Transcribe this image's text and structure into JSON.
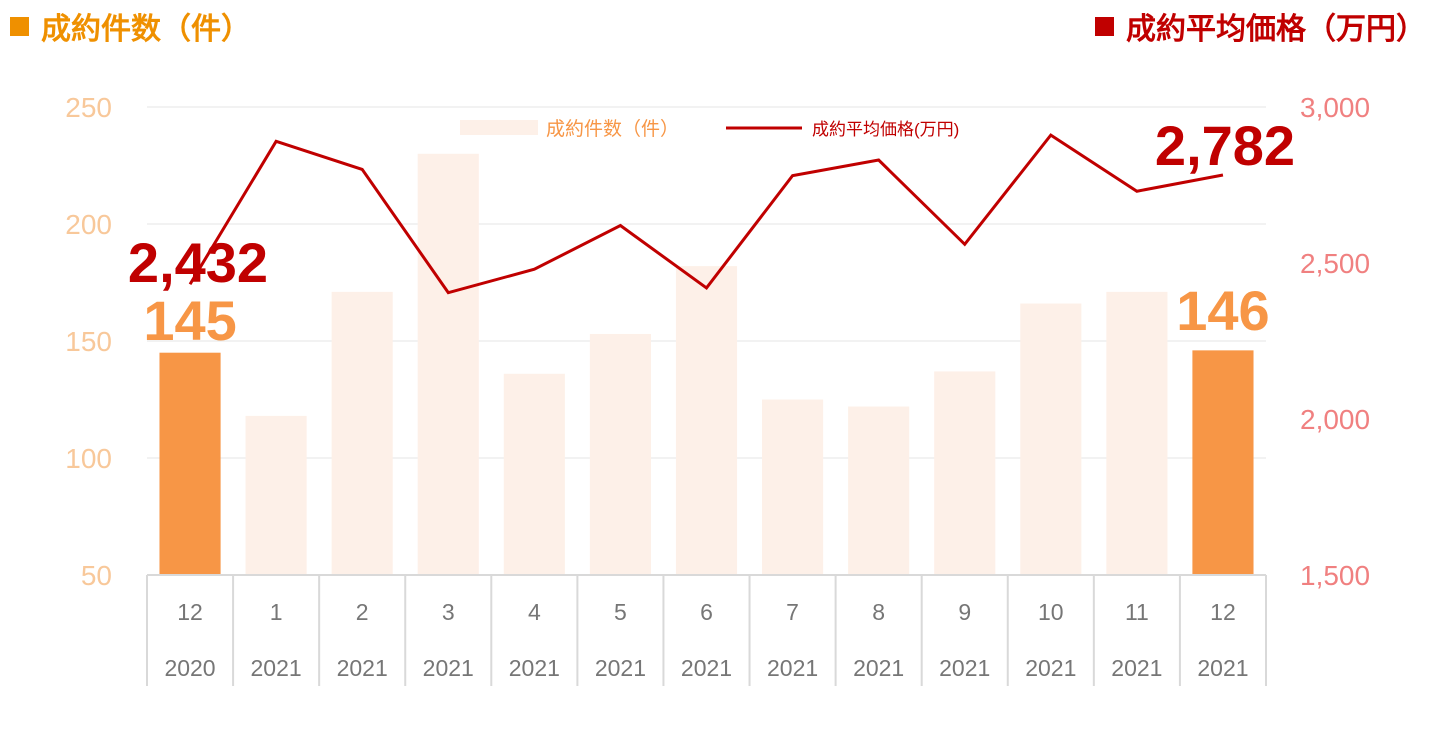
{
  "header": {
    "left_label": "成約件数（件）",
    "right_label": "成約平均価格（万円）"
  },
  "colors": {
    "count_header": "#ef9000",
    "price_header": "#c00000",
    "bar_highlight": "#f79646",
    "bar_faded": "#fdf0e8",
    "line": "#c00000",
    "left_axis_text": "#f8c89a",
    "right_axis_text": "#f08080",
    "category_text": "#767676",
    "grid": "#e6e6e6"
  },
  "chart_data": {
    "type": "bar",
    "categories": [
      {
        "month": "12",
        "year": "2020"
      },
      {
        "month": "1",
        "year": "2021"
      },
      {
        "month": "2",
        "year": "2021"
      },
      {
        "month": "3",
        "year": "2021"
      },
      {
        "month": "4",
        "year": "2021"
      },
      {
        "month": "5",
        "year": "2021"
      },
      {
        "month": "6",
        "year": "2021"
      },
      {
        "month": "7",
        "year": "2021"
      },
      {
        "month": "8",
        "year": "2021"
      },
      {
        "month": "9",
        "year": "2021"
      },
      {
        "month": "10",
        "year": "2021"
      },
      {
        "month": "11",
        "year": "2021"
      },
      {
        "month": "12",
        "year": "2021"
      }
    ],
    "series": [
      {
        "name": "成約件数（件）",
        "type": "bar",
        "axis": "left",
        "values": [
          145,
          118,
          171,
          230,
          136,
          153,
          182,
          125,
          122,
          137,
          166,
          171,
          146
        ],
        "highlighted_indices": [
          0,
          12
        ]
      },
      {
        "name": "成約平均価格(万円)",
        "type": "line",
        "axis": "right",
        "values": [
          2432,
          2890,
          2800,
          2405,
          2480,
          2620,
          2420,
          2780,
          2830,
          2560,
          2910,
          2730,
          2782
        ]
      }
    ],
    "y_left": {
      "range": [
        50,
        250
      ],
      "ticks": [
        "50",
        "100",
        "150",
        "200",
        "250"
      ]
    },
    "y_right": {
      "range": [
        1500,
        3000
      ],
      "ticks": [
        "1,500",
        "2,000",
        "2,500",
        "3,000"
      ]
    },
    "annotations": {
      "price_first": "2,432",
      "price_last": "2,782",
      "count_first": "145",
      "count_last": "146"
    },
    "grid": true,
    "legend_position": "top-center"
  }
}
